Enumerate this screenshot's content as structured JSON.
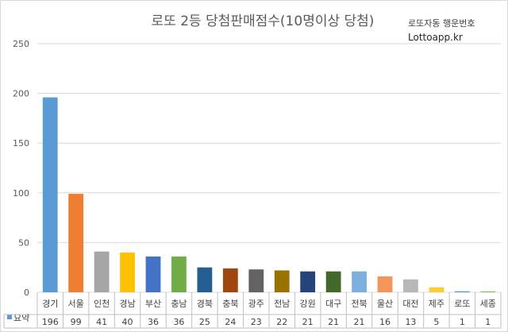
{
  "chart_data": {
    "type": "bar",
    "title": "로또 2등 당첨판매점수(10명이상 당첨)",
    "annotations": [
      "로또자동 행운번호",
      "Lottoapp.kr"
    ],
    "categories": [
      "경기",
      "서울",
      "인천",
      "경남",
      "부산",
      "충남",
      "경북",
      "충북",
      "광주",
      "전남",
      "강원",
      "대구",
      "전북",
      "울산",
      "대전",
      "제주",
      "로또",
      "세종"
    ],
    "series": [
      {
        "name": "요약",
        "values": [
          196,
          99,
          41,
          40,
          36,
          36,
          25,
          24,
          23,
          22,
          21,
          21,
          21,
          16,
          13,
          5,
          1,
          1
        ]
      }
    ],
    "colors": [
      "#5b9bd5",
      "#ed7d31",
      "#a5a5a5",
      "#ffc000",
      "#4472c4",
      "#70ad47",
      "#255e91",
      "#9e480e",
      "#636363",
      "#997300",
      "#264478",
      "#43682b",
      "#7cafdd",
      "#f1975a",
      "#b7b7b7",
      "#ffcd33",
      "#698ed0",
      "#8cc168"
    ],
    "ylim": [
      0,
      250
    ],
    "yticks": [
      0,
      50,
      100,
      150,
      200,
      250
    ],
    "grid": true,
    "data_table": true,
    "legend": "data-table"
  }
}
